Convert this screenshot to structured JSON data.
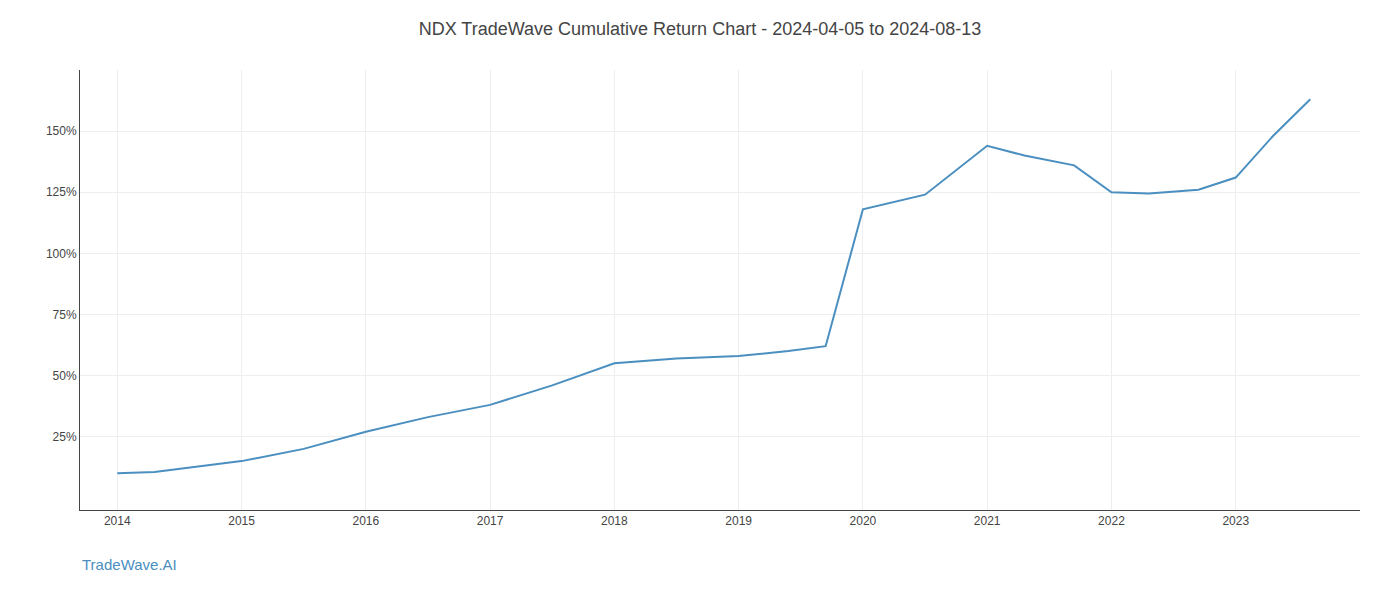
{
  "chart_data": {
    "type": "line",
    "title": "NDX TradeWave Cumulative Return Chart - 2024-04-05 to 2024-08-13",
    "annotations": [
      "TradeWave.AI"
    ],
    "x": [
      2014.0,
      2014.3,
      2015.0,
      2015.5,
      2016.0,
      2016.5,
      2017.0,
      2017.5,
      2018.0,
      2018.5,
      2019.0,
      2019.4,
      2019.7,
      2020.0,
      2020.5,
      2021.0,
      2021.3,
      2021.7,
      2022.0,
      2022.3,
      2022.7,
      2023.0,
      2023.3,
      2023.6
    ],
    "values": [
      10.0,
      10.5,
      15.0,
      20.0,
      27.0,
      33.0,
      38.0,
      46.0,
      55.0,
      57.0,
      58.0,
      60.0,
      62.0,
      118.0,
      124.0,
      144.0,
      140.0,
      136.0,
      125.0,
      124.5,
      126.0,
      131.0,
      148.0,
      163.0
    ],
    "color": "#4a8fc0",
    "xlim": [
      2013.7,
      2024.0
    ],
    "xticks": [
      2014,
      2015,
      2016,
      2017,
      2018,
      2019,
      2020,
      2021,
      2022,
      2023
    ],
    "ylim": [
      -5,
      175
    ],
    "yticks": [
      {
        "value": 25,
        "label": "25%"
      },
      {
        "value": 50,
        "label": "50%"
      },
      {
        "value": 75,
        "label": "75%"
      },
      {
        "value": 100,
        "label": "100%"
      },
      {
        "value": 125,
        "label": "125%"
      },
      {
        "value": 150,
        "label": "150%"
      }
    ],
    "grid": true
  }
}
